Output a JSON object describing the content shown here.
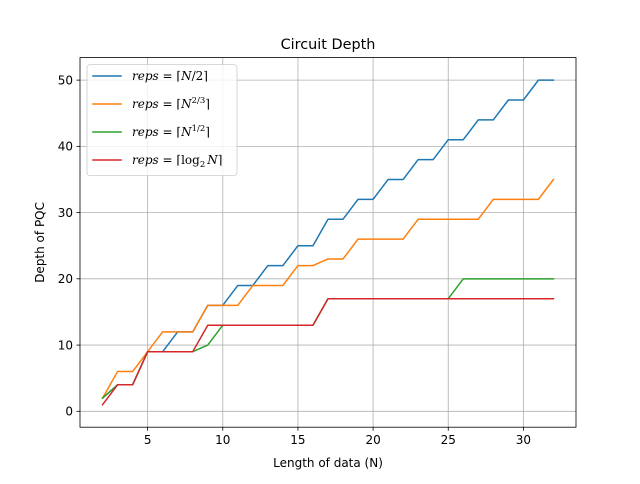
{
  "chart_data": {
    "type": "line",
    "title": "Circuit Depth",
    "xlabel": "Length of data (N)",
    "ylabel": "Depth of PQC",
    "xlim": [
      0.5,
      33.5
    ],
    "ylim": [
      -2.4,
      53.4
    ],
    "xticks": [
      5,
      10,
      15,
      20,
      25,
      30
    ],
    "yticks": [
      0,
      10,
      20,
      30,
      40,
      50
    ],
    "grid": true,
    "legend_position": "upper-left",
    "x": [
      2,
      3,
      4,
      5,
      6,
      7,
      8,
      9,
      10,
      11,
      12,
      13,
      14,
      15,
      16,
      17,
      18,
      19,
      20,
      21,
      22,
      23,
      24,
      25,
      26,
      27,
      28,
      29,
      30,
      31,
      32
    ],
    "series": [
      {
        "name": "reps = ⌈N/2⌉",
        "color": "#1f77b4",
        "values": [
          2,
          4,
          4,
          9,
          9,
          12,
          12,
          16,
          16,
          19,
          19,
          22,
          22,
          25,
          25,
          29,
          29,
          32,
          32,
          35,
          35,
          38,
          38,
          41,
          41,
          44,
          44,
          47,
          47,
          50,
          50
        ]
      },
      {
        "name": "reps = ⌈N^(2/3)⌉",
        "color": "#ff7f0e",
        "values": [
          2,
          6,
          6,
          9,
          12,
          12,
          12,
          16,
          16,
          16,
          19,
          19,
          19,
          22,
          22,
          23,
          23,
          26,
          26,
          26,
          26,
          29,
          29,
          29,
          29,
          29,
          32,
          32,
          32,
          32,
          35
        ]
      },
      {
        "name": "reps = ⌈N^(1/2)⌉",
        "color": "#2ca02c",
        "values": [
          2,
          4,
          4,
          9,
          9,
          9,
          9,
          10,
          13,
          13,
          13,
          13,
          13,
          13,
          13,
          17,
          17,
          17,
          17,
          17,
          17,
          17,
          17,
          17,
          20,
          20,
          20,
          20,
          20,
          20,
          20
        ]
      },
      {
        "name": "reps = ⌈log2 N⌉",
        "color": "#d62728",
        "values": [
          1,
          4,
          4,
          9,
          9,
          9,
          9,
          13,
          13,
          13,
          13,
          13,
          13,
          13,
          13,
          17,
          17,
          17,
          17,
          17,
          17,
          17,
          17,
          17,
          17,
          17,
          17,
          17,
          17,
          17,
          17
        ]
      }
    ]
  },
  "legend": [
    {
      "lhs": "reps",
      "eq": " = ",
      "left": "⌈",
      "base": "N",
      "slash": "/",
      "den": "2",
      "sup": "",
      "right": "⌉"
    },
    {
      "lhs": "reps",
      "eq": " = ",
      "left": "⌈",
      "base": "N",
      "slash": "",
      "den": "",
      "sup": "2/3",
      "right": "⌉"
    },
    {
      "lhs": "reps",
      "eq": " = ",
      "left": "⌈",
      "base": "N",
      "slash": "",
      "den": "",
      "sup": "1/2",
      "right": "⌉"
    },
    {
      "lhs": "reps",
      "eq": " = ",
      "left": "⌈",
      "base": "log",
      "sub": "2",
      "arg": "N",
      "right": "⌉"
    }
  ]
}
